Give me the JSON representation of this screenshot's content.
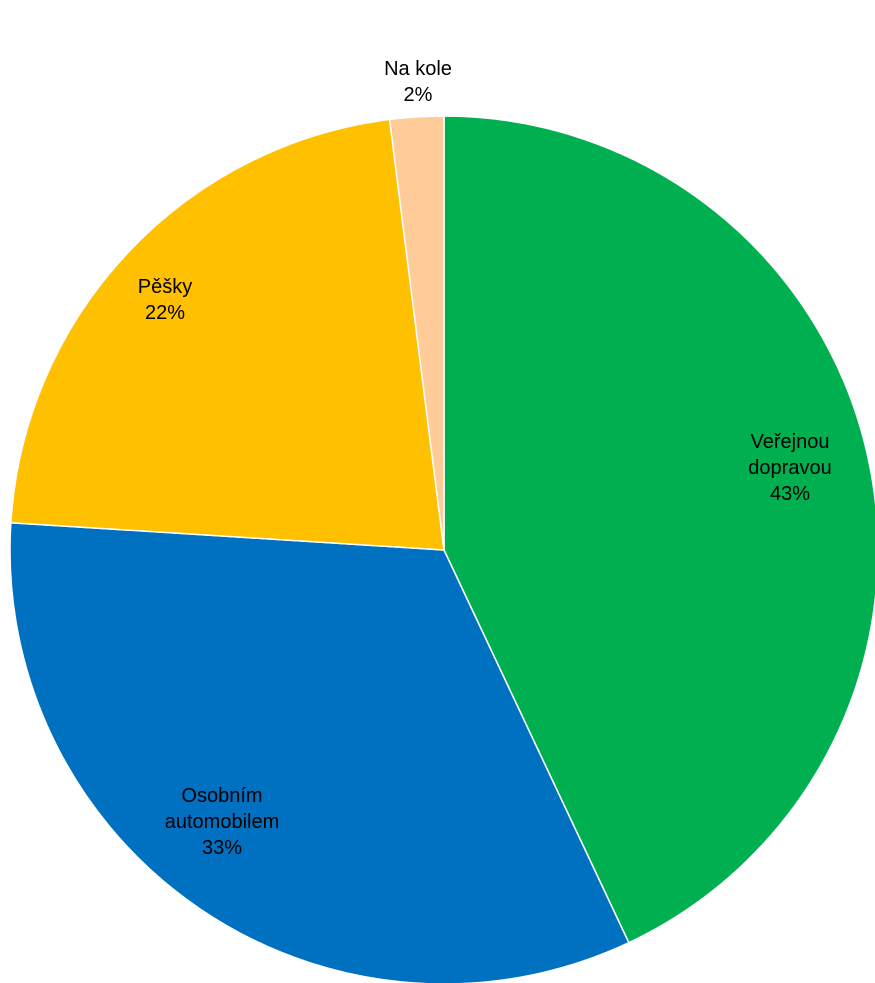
{
  "chart_data": {
    "type": "pie",
    "start": "top",
    "direction": "clockwise",
    "slices": [
      {
        "label_lines": [
          "Veřejnou",
          "dopravou"
        ],
        "value": 43,
        "percent_label": "43%",
        "color": "#00B050"
      },
      {
        "label_lines": [
          "Osobním",
          "automobilem"
        ],
        "value": 33,
        "percent_label": "33%",
        "color": "#0070C0"
      },
      {
        "label_lines": [
          "Pěšky"
        ],
        "value": 22,
        "percent_label": "22%",
        "color": "#FFC000"
      },
      {
        "label_lines": [
          "Na kole"
        ],
        "value": 2,
        "percent_label": "2%",
        "color": "#FFCC99"
      }
    ]
  }
}
